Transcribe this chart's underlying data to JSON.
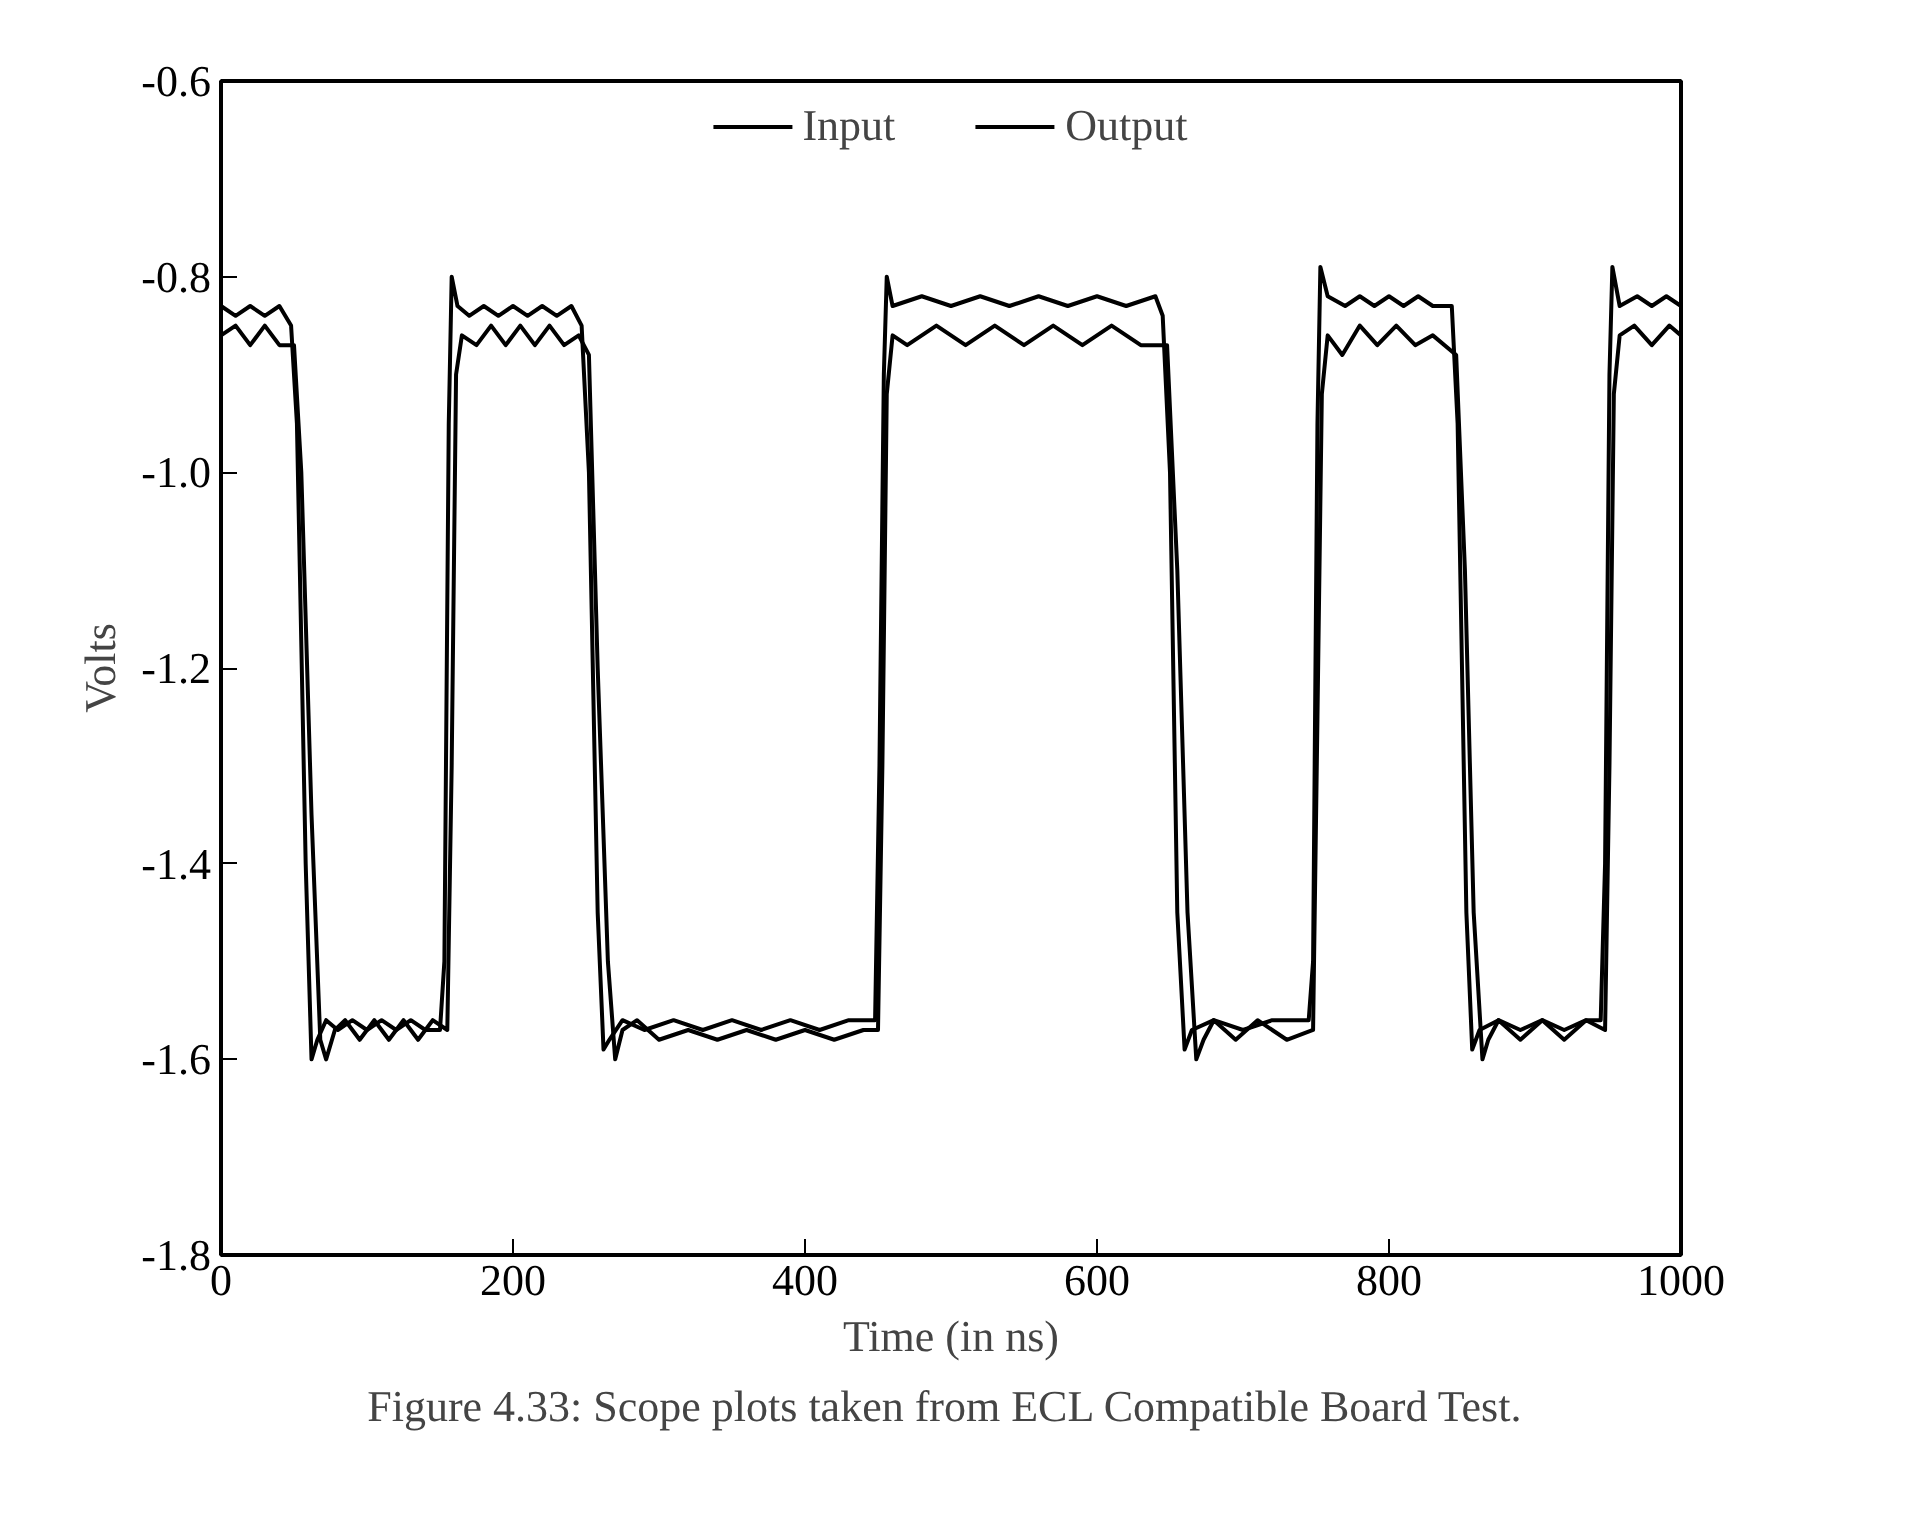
{
  "chart_data": {
    "type": "line",
    "xlabel": "Time (in ns)",
    "ylabel": "Volts",
    "annotations": [
      "Figure 4.33:  Scope plots taken from ECL Compatible Board Test."
    ],
    "xlim": [
      0,
      1000
    ],
    "ylim": [
      -1.8,
      -0.6
    ],
    "xticks": [
      0,
      200,
      400,
      600,
      800,
      1000
    ],
    "yticks": [
      -0.6,
      -0.8,
      {
        "value": -1.0,
        "label": "-1.0"
      },
      -1.2,
      -1.4,
      -1.6,
      -1.8
    ],
    "grid": false,
    "legend": "top",
    "line_style": "solid",
    "series": [
      {
        "name": "Input",
        "color": "#000000",
        "x": [
          0,
          10,
          20,
          30,
          40,
          48,
          52,
          58,
          62,
          66,
          72,
          80,
          90,
          100,
          110,
          120,
          130,
          140,
          150,
          153,
          156,
          158,
          162,
          170,
          180,
          190,
          200,
          210,
          220,
          230,
          240,
          247,
          252,
          258,
          262,
          266,
          275,
          290,
          310,
          330,
          350,
          370,
          390,
          410,
          430,
          448,
          451,
          454,
          456,
          460,
          480,
          500,
          520,
          540,
          560,
          580,
          600,
          620,
          640,
          645,
          650,
          655,
          660,
          665,
          680,
          700,
          720,
          745,
          748,
          751,
          753,
          758,
          770,
          780,
          790,
          800,
          810,
          820,
          830,
          843,
          847,
          853,
          857,
          862,
          875,
          890,
          905,
          920,
          935,
          945,
          948,
          951,
          953,
          958,
          970,
          980,
          990,
          1000
        ],
        "values": [
          -0.83,
          -0.84,
          -0.83,
          -0.84,
          -0.83,
          -0.85,
          -0.95,
          -1.4,
          -1.6,
          -1.58,
          -1.56,
          -1.57,
          -1.56,
          -1.57,
          -1.56,
          -1.57,
          -1.56,
          -1.57,
          -1.57,
          -1.5,
          -0.95,
          -0.8,
          -0.83,
          -0.84,
          -0.83,
          -0.84,
          -0.83,
          -0.84,
          -0.83,
          -0.84,
          -0.83,
          -0.85,
          -1.0,
          -1.45,
          -1.59,
          -1.58,
          -1.56,
          -1.57,
          -1.56,
          -1.57,
          -1.56,
          -1.57,
          -1.56,
          -1.57,
          -1.56,
          -1.56,
          -1.3,
          -0.9,
          -0.8,
          -0.83,
          -0.82,
          -0.83,
          -0.82,
          -0.83,
          -0.82,
          -0.83,
          -0.82,
          -0.83,
          -0.82,
          -0.84,
          -1.0,
          -1.45,
          -1.59,
          -1.57,
          -1.56,
          -1.57,
          -1.56,
          -1.56,
          -1.5,
          -0.95,
          -0.79,
          -0.82,
          -0.83,
          -0.82,
          -0.83,
          -0.82,
          -0.83,
          -0.82,
          -0.83,
          -0.83,
          -0.95,
          -1.45,
          -1.59,
          -1.57,
          -1.56,
          -1.57,
          -1.56,
          -1.57,
          -1.56,
          -1.56,
          -1.4,
          -0.9,
          -0.79,
          -0.83,
          -0.82,
          -0.83,
          -0.82,
          -0.83
        ]
      },
      {
        "name": "Output",
        "color": "#000000",
        "x": [
          0,
          10,
          20,
          30,
          40,
          50,
          55,
          62,
          68,
          72,
          78,
          85,
          95,
          105,
          115,
          125,
          135,
          145,
          155,
          158,
          161,
          165,
          175,
          185,
          195,
          205,
          215,
          225,
          235,
          245,
          252,
          258,
          265,
          270,
          275,
          285,
          300,
          320,
          340,
          360,
          380,
          400,
          420,
          440,
          450,
          453,
          456,
          460,
          470,
          490,
          510,
          530,
          550,
          570,
          590,
          610,
          630,
          648,
          655,
          662,
          668,
          673,
          680,
          695,
          710,
          730,
          748,
          751,
          754,
          758,
          768,
          780,
          792,
          805,
          818,
          830,
          846,
          852,
          858,
          864,
          868,
          875,
          890,
          905,
          920,
          935,
          948,
          951,
          954,
          958,
          968,
          980,
          992,
          1000
        ],
        "values": [
          -0.86,
          -0.85,
          -0.87,
          -0.85,
          -0.87,
          -0.87,
          -1.0,
          -1.35,
          -1.58,
          -1.6,
          -1.57,
          -1.56,
          -1.58,
          -1.56,
          -1.58,
          -1.56,
          -1.58,
          -1.56,
          -1.57,
          -1.3,
          -0.9,
          -0.86,
          -0.87,
          -0.85,
          -0.87,
          -0.85,
          -0.87,
          -0.85,
          -0.87,
          -0.86,
          -0.88,
          -1.2,
          -1.5,
          -1.6,
          -1.57,
          -1.56,
          -1.58,
          -1.57,
          -1.58,
          -1.57,
          -1.58,
          -1.57,
          -1.58,
          -1.57,
          -1.57,
          -1.3,
          -0.92,
          -0.86,
          -0.87,
          -0.85,
          -0.87,
          -0.85,
          -0.87,
          -0.85,
          -0.87,
          -0.85,
          -0.87,
          -0.87,
          -1.1,
          -1.45,
          -1.6,
          -1.58,
          -1.56,
          -1.58,
          -1.56,
          -1.58,
          -1.57,
          -1.25,
          -0.92,
          -0.86,
          -0.88,
          -0.85,
          -0.87,
          -0.85,
          -0.87,
          -0.86,
          -0.88,
          -1.1,
          -1.45,
          -1.6,
          -1.58,
          -1.56,
          -1.58,
          -1.56,
          -1.58,
          -1.56,
          -1.57,
          -1.3,
          -0.92,
          -0.86,
          -0.85,
          -0.87,
          -0.85,
          -0.86
        ]
      }
    ]
  }
}
